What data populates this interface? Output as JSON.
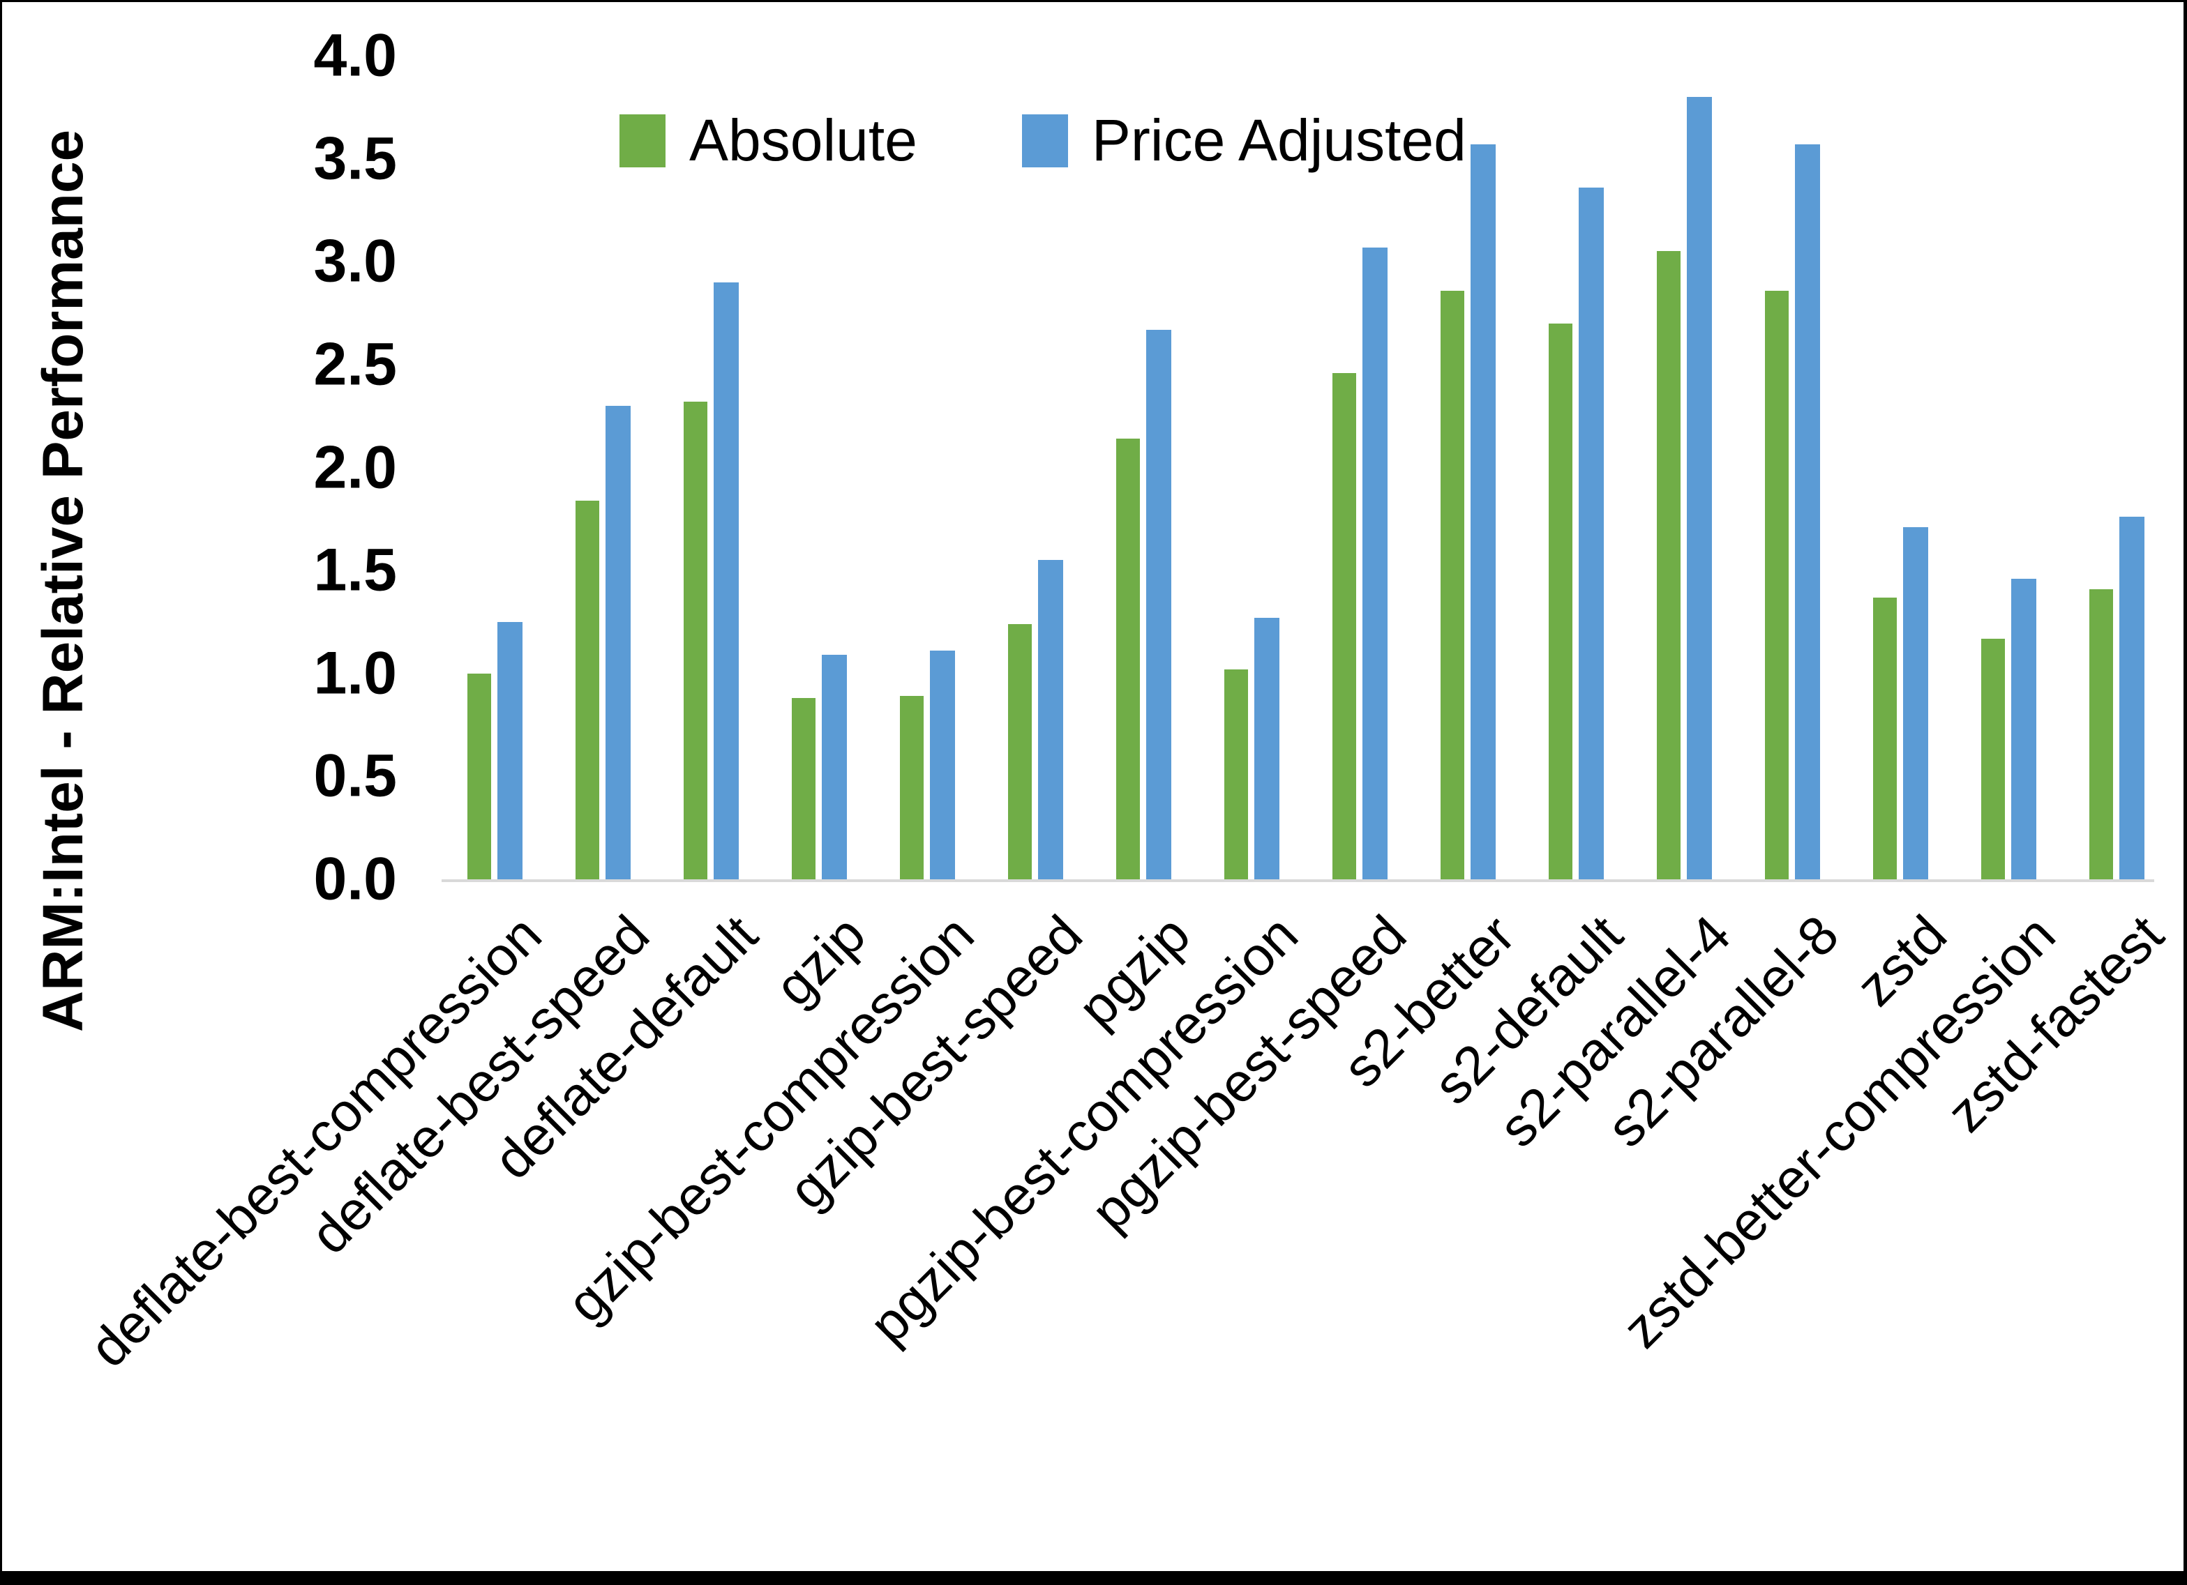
{
  "chart_data": {
    "type": "bar",
    "title": "",
    "ylabel": "ARM:Intel - Relative Performance",
    "xlabel": "",
    "ylim": [
      0.0,
      4.0
    ],
    "y_ticks": [
      "0.0",
      "0.5",
      "1.0",
      "1.5",
      "2.0",
      "2.5",
      "3.0",
      "3.5",
      "4.0"
    ],
    "grid": false,
    "legend_position": "top-center",
    "categories": [
      "deflate-best-compression",
      "deflate-best-speed",
      "deflate-default",
      "gzip",
      "gzip-best-compression",
      "gzip-best-speed",
      "pgzip",
      "pgzip-best-compression",
      "pgzip-best-speed",
      "s2-better",
      "s2-default",
      "s2-parallel-4",
      "s2-parallel-8",
      "zstd",
      "zstd-better-compression",
      "zstd-fastest"
    ],
    "series": [
      {
        "name": "Absolute",
        "color": "#70AD47",
        "values": [
          1.0,
          1.84,
          2.32,
          0.88,
          0.89,
          1.24,
          2.14,
          1.02,
          2.46,
          2.86,
          2.7,
          3.05,
          2.86,
          1.37,
          1.17,
          1.41
        ]
      },
      {
        "name": "Price Adjusted",
        "color": "#5B9BD5",
        "values": [
          1.25,
          2.3,
          2.9,
          1.09,
          1.11,
          1.55,
          2.67,
          1.27,
          3.07,
          3.57,
          3.36,
          3.8,
          3.57,
          1.71,
          1.46,
          1.76
        ]
      }
    ],
    "axis_line_color": "#d9d9d9"
  }
}
